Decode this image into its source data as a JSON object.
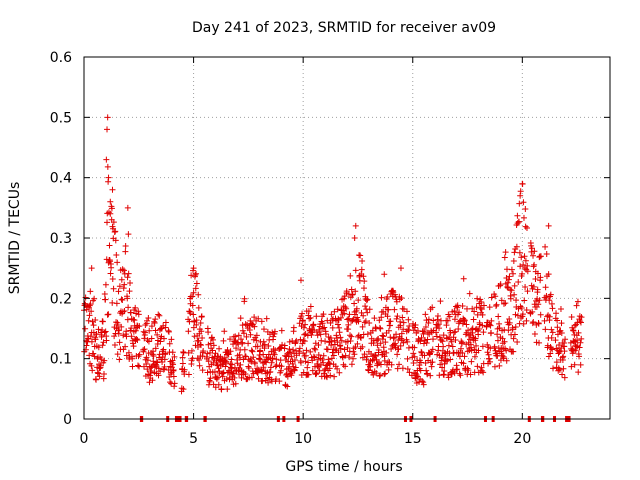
{
  "chart_data": {
    "type": "scatter",
    "title": "Day 241 of 2023, SRMTID for receiver av09",
    "xlabel": "GPS time / hours",
    "ylabel": "SRMTID / TECUs",
    "xlim": [
      0,
      24
    ],
    "ylim": [
      0,
      0.6
    ],
    "x_ticks": [
      0,
      5,
      10,
      15,
      20
    ],
    "x_tick_labels": [
      "0",
      "5",
      "10",
      "15",
      "20"
    ],
    "y_ticks": [
      0,
      0.1,
      0.2,
      0.3,
      0.4,
      0.5,
      0.6
    ],
    "y_tick_labels": [
      "0",
      "0.1",
      "0.2",
      "0.3",
      "0.4",
      "0.5",
      "0.6"
    ],
    "grid": true,
    "marker": "+",
    "color": "#e00000",
    "series": [
      {
        "name": "SRMTID",
        "trend": [
          [
            0.0,
            0.14
          ],
          [
            0.3,
            0.16
          ],
          [
            0.6,
            0.1
          ],
          [
            0.9,
            0.12
          ],
          [
            1.1,
            0.3
          ],
          [
            1.3,
            0.26
          ],
          [
            1.6,
            0.16
          ],
          [
            1.9,
            0.2
          ],
          [
            2.2,
            0.14
          ],
          [
            2.6,
            0.12
          ],
          [
            3.0,
            0.11
          ],
          [
            3.4,
            0.12
          ],
          [
            3.9,
            0.1
          ],
          [
            4.3,
            0.07
          ],
          [
            4.7,
            0.1
          ],
          [
            5.0,
            0.19
          ],
          [
            5.3,
            0.13
          ],
          [
            5.7,
            0.1
          ],
          [
            6.2,
            0.08
          ],
          [
            6.7,
            0.09
          ],
          [
            7.2,
            0.11
          ],
          [
            7.7,
            0.12
          ],
          [
            8.3,
            0.11
          ],
          [
            8.8,
            0.1
          ],
          [
            9.3,
            0.09
          ],
          [
            9.8,
            0.12
          ],
          [
            10.3,
            0.13
          ],
          [
            10.8,
            0.12
          ],
          [
            11.3,
            0.12
          ],
          [
            11.8,
            0.14
          ],
          [
            12.3,
            0.16
          ],
          [
            12.6,
            0.2
          ],
          [
            13.0,
            0.13
          ],
          [
            13.5,
            0.12
          ],
          [
            14.0,
            0.15
          ],
          [
            14.5,
            0.14
          ],
          [
            15.0,
            0.11
          ],
          [
            15.5,
            0.1
          ],
          [
            16.0,
            0.13
          ],
          [
            16.5,
            0.12
          ],
          [
            17.0,
            0.13
          ],
          [
            17.5,
            0.13
          ],
          [
            18.0,
            0.14
          ],
          [
            18.5,
            0.13
          ],
          [
            19.0,
            0.16
          ],
          [
            19.5,
            0.17
          ],
          [
            19.8,
            0.24
          ],
          [
            20.0,
            0.28
          ],
          [
            20.3,
            0.22
          ],
          [
            20.6,
            0.2
          ],
          [
            21.0,
            0.22
          ],
          [
            21.3,
            0.15
          ],
          [
            21.6,
            0.12
          ],
          [
            22.0,
            0.11
          ],
          [
            22.4,
            0.15
          ],
          [
            22.7,
            0.12
          ]
        ],
        "peaks": [
          [
            1.08,
            0.5
          ],
          [
            1.05,
            0.48
          ],
          [
            1.02,
            0.43
          ],
          [
            1.12,
            0.4
          ],
          [
            1.3,
            0.38
          ],
          [
            1.2,
            0.36
          ],
          [
            2.0,
            0.35
          ],
          [
            5.0,
            0.25
          ],
          [
            12.4,
            0.32
          ],
          [
            12.35,
            0.3
          ],
          [
            20.0,
            0.39
          ],
          [
            19.9,
            0.37
          ],
          [
            21.2,
            0.32
          ],
          [
            13.7,
            0.24
          ],
          [
            9.9,
            0.23
          ],
          [
            0.35,
            0.25
          ]
        ]
      }
    ],
    "gaps": [
      [
        2.55,
        2.7
      ],
      [
        3.75,
        3.85
      ],
      [
        4.15,
        4.45
      ],
      [
        4.6,
        4.75
      ],
      [
        5.45,
        5.6
      ],
      [
        8.8,
        8.9
      ],
      [
        9.05,
        9.15
      ],
      [
        9.7,
        9.8
      ],
      [
        14.6,
        14.7
      ],
      [
        14.85,
        14.95
      ],
      [
        15.95,
        16.05
      ],
      [
        18.25,
        18.35
      ],
      [
        18.6,
        18.7
      ],
      [
        20.25,
        20.35
      ],
      [
        20.85,
        21.0
      ],
      [
        21.4,
        21.5
      ],
      [
        21.95,
        22.2
      ]
    ]
  }
}
